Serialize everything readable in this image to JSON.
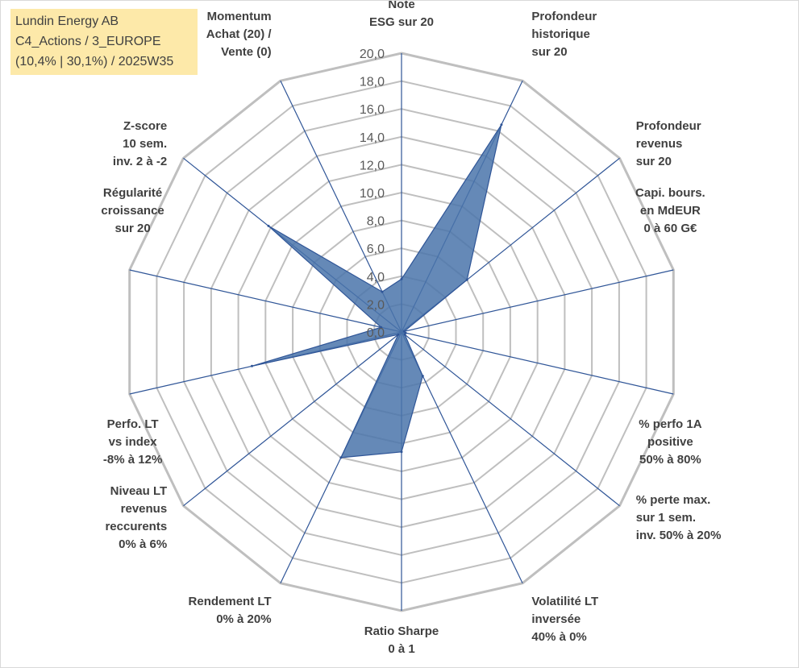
{
  "info_box": {
    "line1": "Lundin Energy AB",
    "line2": "C4_Actions / 3_EUROPE",
    "line3": "(10,4% | 30,1%) / 2025W35"
  },
  "chart_data": {
    "type": "radar",
    "title": "",
    "rlim": [
      0,
      20
    ],
    "tick_step": 2,
    "tick_labels": [
      "0,0",
      "2,0",
      "4,0",
      "6,0",
      "8,0",
      "10,0",
      "12,0",
      "14,0",
      "16,0",
      "18,0",
      "20,0"
    ],
    "grid": true,
    "legend": "none",
    "colors": {
      "fill": "#4a74aa",
      "line": "#2f5597",
      "grid": "#bfbfbf",
      "axis": "#2f5597"
    },
    "axes": [
      [
        "Note",
        "ESG sur 20"
      ],
      [
        "Profondeur",
        "historique",
        "sur 20"
      ],
      [
        "Profondeur",
        "revenus",
        "sur 20"
      ],
      [
        "Capi. bours.",
        "en MdEUR",
        "0 à 60 G€"
      ],
      [
        "% perfo 1A",
        "positive",
        "50% à 80%"
      ],
      [
        "% perte max.",
        "sur 1 sem.",
        "inv. 50% à 20%"
      ],
      [
        "Volatilité LT",
        "inversée",
        "40% à 0%"
      ],
      [
        "Ratio Sharpe",
        "0 à 1"
      ],
      [
        "Rendement LT",
        "0% à 20%"
      ],
      [
        "Niveau LT",
        "revenus",
        "reccurents",
        "0% à 6%"
      ],
      [
        "Perfo. LT",
        "vs index",
        "-8% à 12%"
      ],
      [
        "Régularité",
        "croissance",
        "sur 20"
      ],
      [
        "Z-score",
        "10 sem.",
        "inv. 2 à -2"
      ],
      [
        "Momentum",
        "Achat (20) /",
        "Vente (0)"
      ]
    ],
    "series": [
      {
        "values": [
          3.8,
          16.5,
          6.0,
          0.2,
          0.3,
          0.3,
          3.5,
          8.6,
          10.0,
          0.3,
          11.0,
          1.5,
          12.2,
          3.2
        ]
      }
    ]
  }
}
